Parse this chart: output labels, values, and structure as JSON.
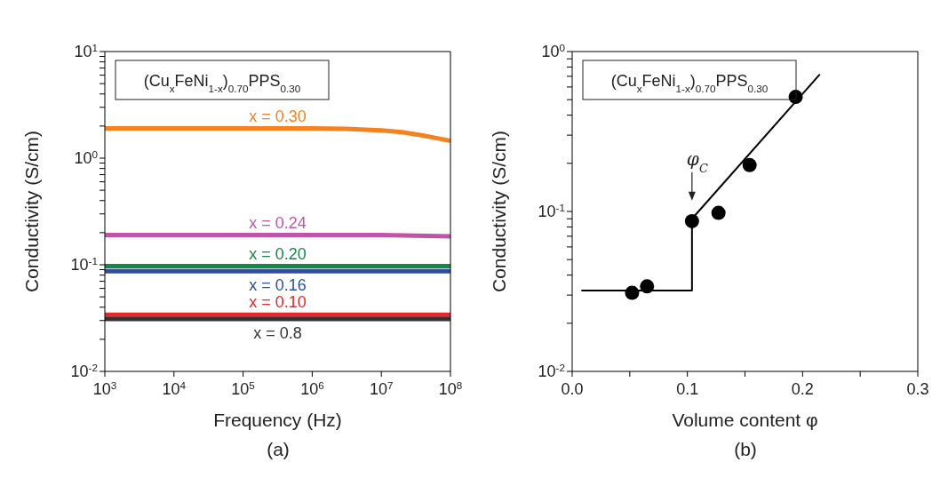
{
  "chart_data": [
    {
      "type": "line",
      "title": "(Cu$_{x}$FeNi$_{1-x}$)$_{0.70}$PPS$_{0.30}$",
      "xlabel": "Frequency (Hz)",
      "ylabel": "Conductivity (S/cm)",
      "annotations": [
        "(a)"
      ],
      "log": "xy",
      "grid": false,
      "marker": "none",
      "line_style": "solid",
      "xlim": [
        1000,
        100000000
      ],
      "ylim": [
        0.01,
        10
      ],
      "xticks": [
        {
          "value": 1000,
          "label": "10$^{3}$"
        },
        {
          "value": 10000,
          "label": "10$^{4}$"
        },
        {
          "value": 100000,
          "label": "10$^{5}$"
        },
        {
          "value": 1000000,
          "label": "10$^{6}$"
        },
        {
          "value": 10000000,
          "label": "10$^{7}$"
        },
        {
          "value": 100000000,
          "label": "10$^{8}$"
        }
      ],
      "yticks": [
        {
          "value": 0.01,
          "label": "10$^{-2}$"
        },
        {
          "value": 0.02,
          "label": null
        },
        {
          "value": 0.03,
          "label": null
        },
        {
          "value": 0.04,
          "label": null
        },
        {
          "value": 0.05,
          "label": null
        },
        {
          "value": 0.06,
          "label": null
        },
        {
          "value": 0.07,
          "label": null
        },
        {
          "value": 0.08,
          "label": null
        },
        {
          "value": 0.09,
          "label": null
        },
        {
          "value": 0.1,
          "label": "10$^{-1}$"
        },
        {
          "value": 0.2,
          "label": null
        },
        {
          "value": 0.3,
          "label": null
        },
        {
          "value": 0.4,
          "label": null
        },
        {
          "value": 0.5,
          "label": null
        },
        {
          "value": 0.6,
          "label": null
        },
        {
          "value": 0.7,
          "label": null
        },
        {
          "value": 0.8,
          "label": null
        },
        {
          "value": 0.9,
          "label": null
        },
        {
          "value": 1,
          "label": "10$^{0}$"
        },
        {
          "value": 2,
          "label": null
        },
        {
          "value": 3,
          "label": null
        },
        {
          "value": 4,
          "label": null
        },
        {
          "value": 5,
          "label": null
        },
        {
          "value": 6,
          "label": null
        },
        {
          "value": 7,
          "label": null
        },
        {
          "value": 8,
          "label": null
        },
        {
          "value": 9,
          "label": null
        },
        {
          "value": 10,
          "label": "10$^{1}$"
        }
      ],
      "series": [
        {
          "name": "x = 0.30",
          "color": "#f58220",
          "x": [
            1000,
            10000,
            100000,
            1000000,
            3000000,
            10000000,
            20000000,
            40000000,
            60000000,
            100000000
          ],
          "values": [
            1.9,
            1.9,
            1.9,
            1.9,
            1.88,
            1.82,
            1.75,
            1.63,
            1.55,
            1.45
          ]
        },
        {
          "name": "x = 0.24",
          "color": "#c055a8",
          "x": [
            1000,
            1000000,
            10000000,
            100000000
          ],
          "values": [
            0.19,
            0.19,
            0.19,
            0.185
          ]
        },
        {
          "name": "x = 0.20",
          "color": "#15874a",
          "x": [
            1000,
            1000000,
            100000000
          ],
          "values": [
            0.097,
            0.097,
            0.097
          ]
        },
        {
          "name": "x = 0.16",
          "color": "#2a4fa3",
          "x": [
            1000,
            1000000,
            100000000
          ],
          "values": [
            0.087,
            0.087,
            0.087
          ]
        },
        {
          "name": "x = 0.10",
          "color": "#e8262b",
          "x": [
            1000,
            1000000,
            100000000
          ],
          "values": [
            0.034,
            0.034,
            0.034
          ]
        },
        {
          "name": "x = 0.8",
          "color": "#333333",
          "x": [
            1000,
            1000000,
            100000000
          ],
          "values": [
            0.031,
            0.031,
            0.031
          ]
        }
      ]
    },
    {
      "type": "scatter",
      "title": "(Cu$_{x}$FeNi$_{1-x}$)$_{0.70}$PPS$_{0.30}$",
      "xlabel": "Volume content φ",
      "ylabel": "Conductivity (S/cm)",
      "log": "y",
      "grid": false,
      "annotations": [
        "(b)",
        "φ$_{C}$"
      ],
      "xlim": [
        0,
        0.3
      ],
      "ylim": [
        0.01,
        1
      ],
      "xticks": [
        {
          "value": 0,
          "label": "0.0"
        },
        {
          "value": 0.05,
          "label": null
        },
        0.1,
        {
          "value": 0.15,
          "label": null
        },
        0.2,
        {
          "value": 0.25,
          "label": null
        },
        0.3
      ],
      "yticks": [
        {
          "value": 0.01,
          "label": "10$^{-2}$"
        },
        {
          "value": 0.02,
          "label": null
        },
        {
          "value": 0.03,
          "label": null
        },
        {
          "value": 0.04,
          "label": null
        },
        {
          "value": 0.05,
          "label": null
        },
        {
          "value": 0.06,
          "label": null
        },
        {
          "value": 0.07,
          "label": null
        },
        {
          "value": 0.08,
          "label": null
        },
        {
          "value": 0.09,
          "label": null
        },
        {
          "value": 0.1,
          "label": "10$^{-1}$"
        },
        {
          "value": 0.2,
          "label": null
        },
        {
          "value": 0.3,
          "label": null
        },
        {
          "value": 0.4,
          "label": null
        },
        {
          "value": 0.5,
          "label": null
        },
        {
          "value": 0.6,
          "label": null
        },
        {
          "value": 0.7,
          "label": null
        },
        {
          "value": 0.8,
          "label": null
        },
        {
          "value": 0.9,
          "label": null
        },
        {
          "value": 1,
          "label": "10$^{0}$"
        }
      ],
      "series": [
        {
          "color": "#000000",
          "marker": "circle",
          "x": [
            0.052,
            0.065,
            0.104,
            0.127,
            0.154,
            0.194
          ],
          "values": [
            0.031,
            0.034,
            0.087,
            0.098,
            0.195,
            0.52
          ]
        },
        {
          "type": "line",
          "color": "#000000",
          "marker": "none",
          "line_style": "solid",
          "x": [
            0.008,
            0.104,
            0.104,
            0.215
          ],
          "values": [
            0.032,
            0.032,
            0.09,
            0.72
          ]
        }
      ]
    }
  ]
}
